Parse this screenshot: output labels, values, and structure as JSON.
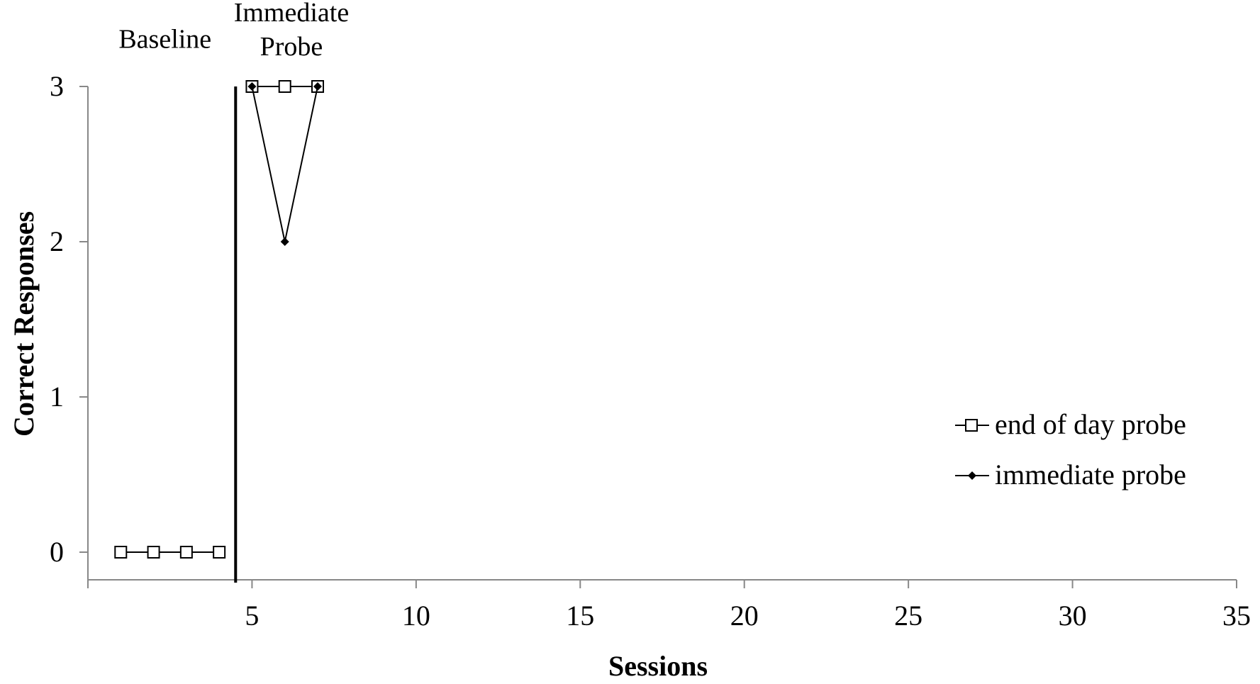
{
  "chart_data": {
    "type": "line",
    "title": "",
    "xlabel": "Sessions",
    "ylabel": "Correct Responses",
    "xlim": [
      0,
      35
    ],
    "ylim": [
      -0.2,
      3
    ],
    "x_ticks": [
      5,
      10,
      15,
      20,
      25,
      30,
      35
    ],
    "y_ticks": [
      0,
      1,
      2,
      3
    ],
    "grid": false,
    "legend_position": "right",
    "phase_change_line": {
      "x": 4.5
    },
    "phase_labels": [
      {
        "text": "Baseline",
        "x": 2.35,
        "y": 3.25
      },
      {
        "text": "Immediate",
        "x": 6.2,
        "y": 3.42
      },
      {
        "text": "Probe",
        "x": 6.2,
        "y": 3.2
      }
    ],
    "series": [
      {
        "name": "end of day probe",
        "marker": "open-square",
        "segments": [
          {
            "x": [
              1,
              2,
              3,
              4
            ],
            "y": [
              0,
              0,
              0,
              0
            ]
          },
          {
            "x": [
              5,
              6,
              7
            ],
            "y": [
              3,
              3,
              3
            ]
          }
        ]
      },
      {
        "name": "immediate probe",
        "marker": "filled-diamond",
        "segments": [
          {
            "x": [
              5,
              6,
              7
            ],
            "y": [
              3,
              2,
              3
            ]
          }
        ]
      }
    ]
  },
  "colors": {
    "ink": "#000000",
    "axis": "#888888",
    "background": "#ffffff"
  }
}
